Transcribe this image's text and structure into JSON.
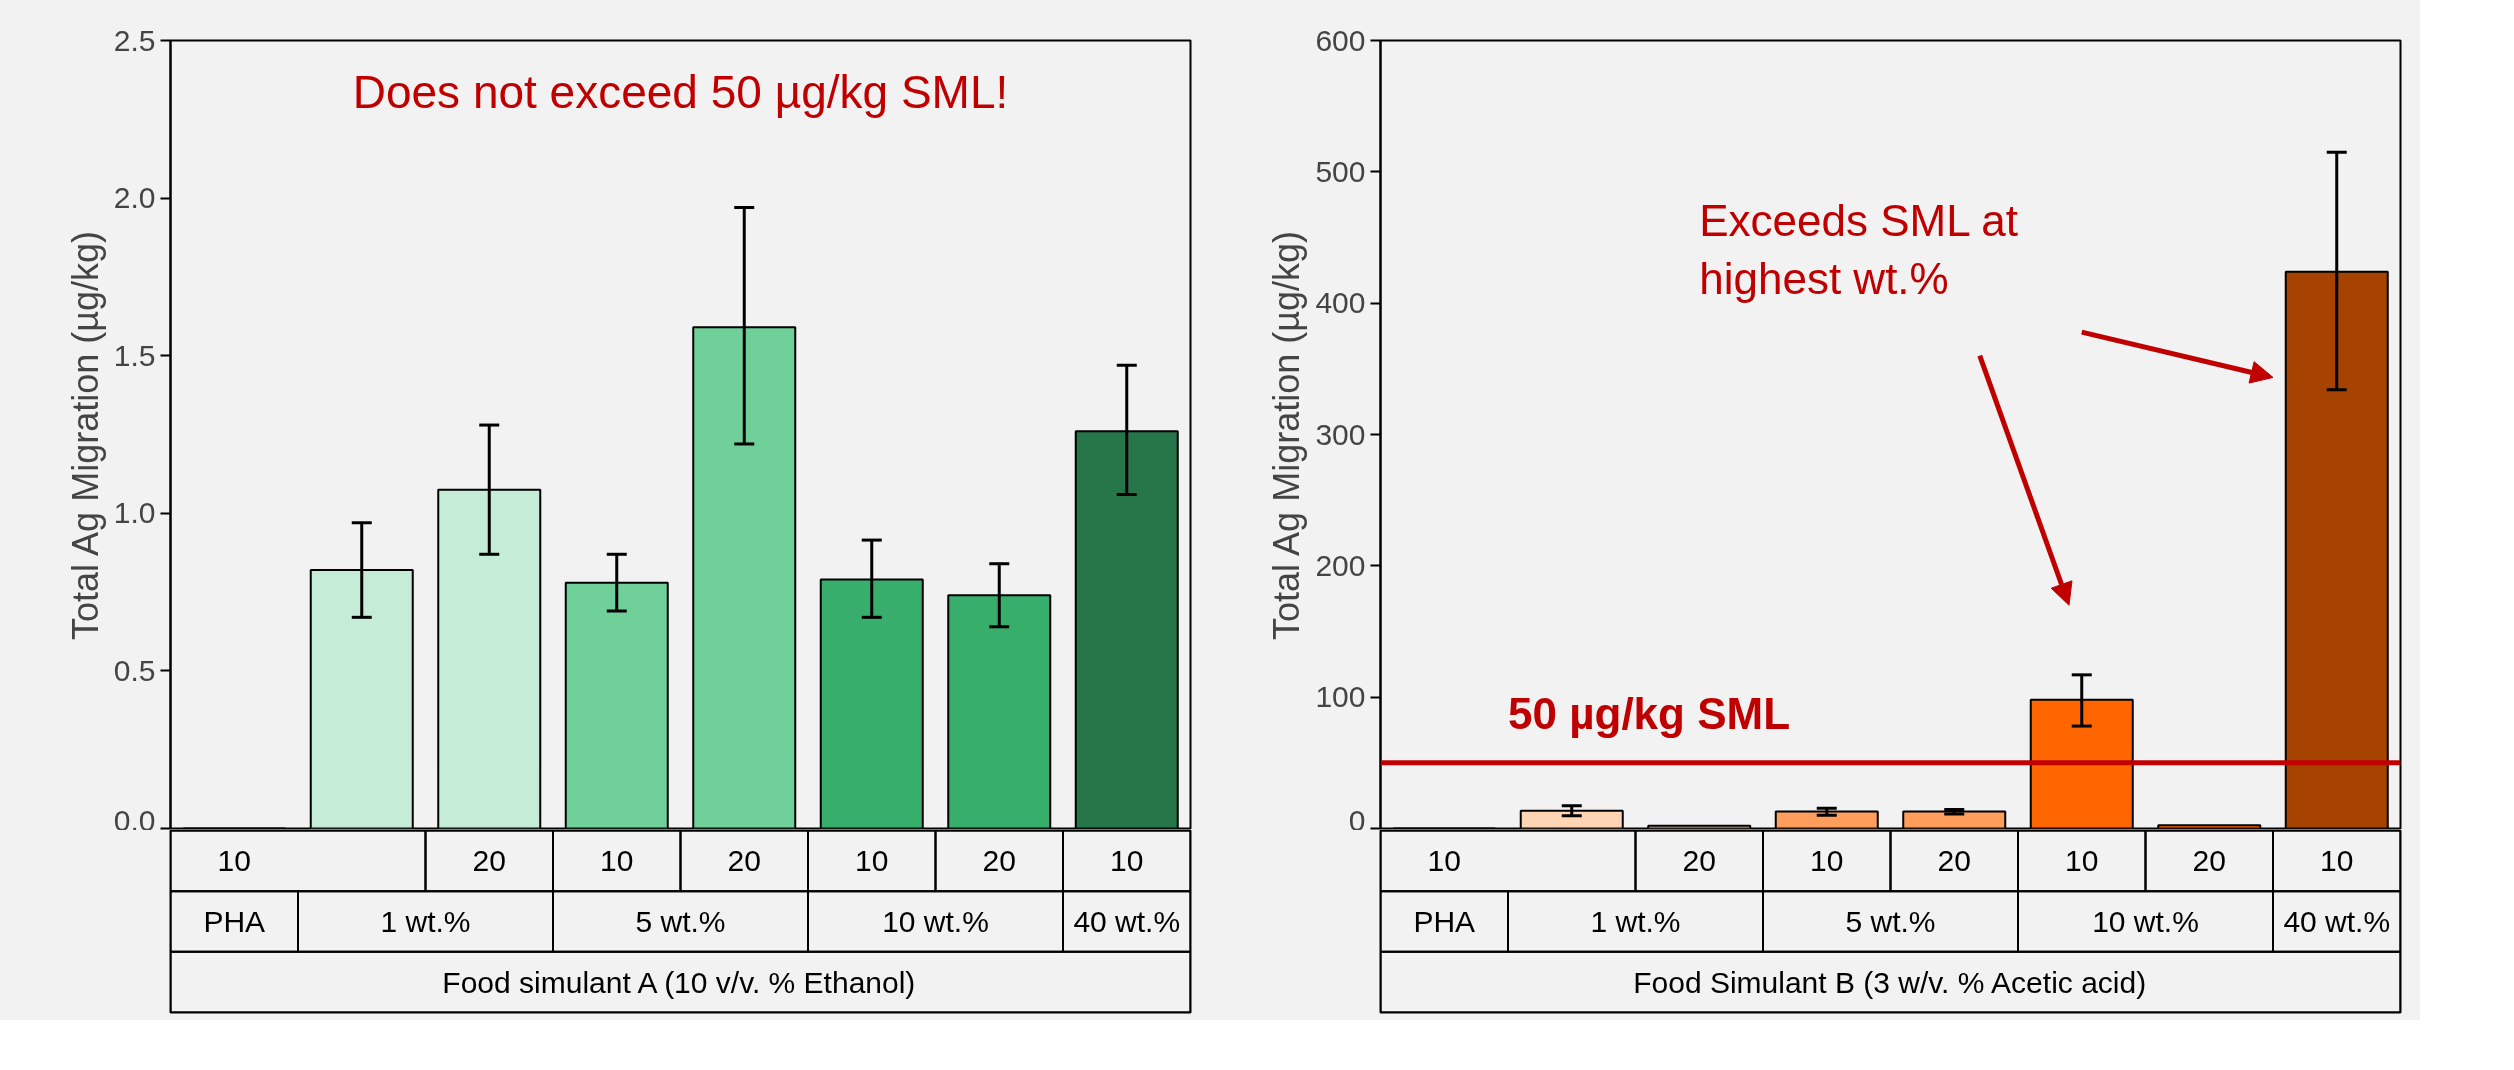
{
  "chart_data": [
    {
      "type": "bar",
      "ylabel": "Total Ag Migration (µg/kg)",
      "xlabel": "Food simulant A (10 v/v. % Ethanol)",
      "categories": [
        "10",
        null,
        "20",
        "10",
        "20",
        "10",
        "20",
        "10"
      ],
      "values": [
        0,
        0.82,
        1.075,
        0.78,
        1.59,
        0.79,
        0.74,
        1.26
      ],
      "colors": [
        "#000000",
        "#c5ecd7",
        "#c5ecd7",
        "#70d09a",
        "#70d09a",
        "#38ae6c",
        "#38ae6c",
        "#26764a"
      ],
      "errors": [
        null,
        [
          0.67,
          0.97
        ],
        [
          0.87,
          1.28
        ],
        [
          0.69,
          0.87
        ],
        [
          1.22,
          1.97
        ],
        [
          0.67,
          0.915
        ],
        [
          0.64,
          0.84
        ],
        [
          1.06,
          1.47
        ]
      ],
      "ylim": [
        0,
        2.5
      ],
      "yticks": [
        {
          "value": 0,
          "label": "0.0"
        },
        {
          "value": 0.5,
          "label": "0.5"
        },
        {
          "value": 1,
          "label": "1.0"
        },
        {
          "value": 1.5,
          "label": "1.5"
        },
        {
          "value": 2,
          "label": "2.0"
        },
        {
          "value": 2.5,
          "label": "2.5"
        }
      ],
      "annotations": [
        "Does not exceed 50 µg/kg SML!",
        "PHA",
        "1 wt.%",
        "5 wt.%",
        "10 wt.%",
        "40 wt.%"
      ]
    },
    {
      "type": "bar",
      "ylabel": "Total Ag Migration (µg/kg)",
      "xlabel": "Food Simulant B (3 w/v. % Acetic acid)",
      "categories": [
        "10",
        null,
        "20",
        "10",
        "20",
        "10",
        "20",
        "10"
      ],
      "values": [
        0,
        13.5,
        2,
        13,
        13,
        98,
        2.4,
        424
      ],
      "colors": [
        "#000000",
        "#ffd5b5",
        "#ffd5b5",
        "#ff9d5c",
        "#ff9d5c",
        "#ff6600",
        "#ff6600",
        "#a64300"
      ],
      "errors": [
        null,
        [
          9.7,
          17.4
        ],
        null,
        [
          10,
          15.5
        ],
        [
          11,
          14.5
        ],
        [
          78,
          117
        ],
        null,
        [
          334,
          515
        ]
      ],
      "ylim": [
        0,
        600
      ],
      "yticks": [
        0,
        100,
        200,
        300,
        400,
        500,
        600
      ],
      "ref_lines": [
        {
          "axis": "y",
          "value": 50,
          "label": "50 µg/kg SML",
          "color": "#c00000"
        }
      ],
      "annotations": [
        "Exceeds SML at\nhighest wt.%",
        "PHA",
        "1 wt.%",
        "5 wt.%",
        "10 wt.%",
        "40 wt.%"
      ]
    }
  ]
}
